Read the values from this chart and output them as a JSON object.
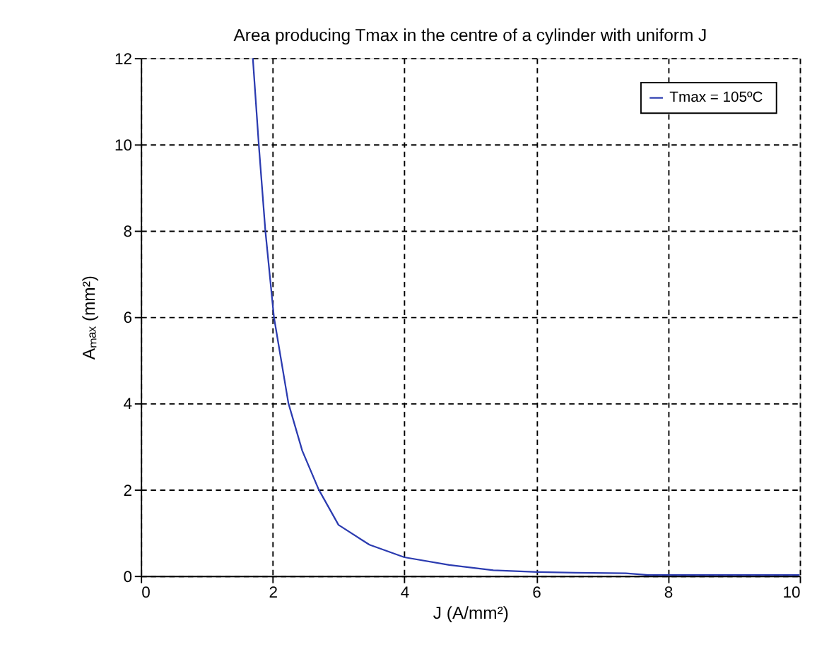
{
  "chart_data": {
    "type": "line",
    "title": "Area producing Tmax in the centre of a cylinder with uniform J",
    "xlabel": "J (A/mm²)",
    "ylabel": "Aₘₐₓ (mm²)",
    "series": [
      {
        "name": "Tmax =  105ºC",
        "color": "#2b3bb0",
        "x": [
          1.7,
          1.79,
          1.89,
          2.02,
          2.24,
          2.45,
          2.7,
          3.0,
          3.47,
          4.0,
          4.68,
          5.35,
          6.02,
          6.6,
          7.36,
          7.7,
          8.5,
          10
        ],
        "values": [
          12,
          10,
          8,
          6,
          4,
          2.9,
          2,
          1.18,
          0.72,
          0.43,
          0.25,
          0.13,
          0.09,
          0.07,
          0.06,
          0.02,
          0.02,
          0.02
        ]
      }
    ],
    "xlim": [
      0,
      10
    ],
    "ylim": [
      0,
      12
    ],
    "xticks": [
      0,
      2,
      4,
      6,
      8,
      10
    ],
    "yticks": [
      0,
      2,
      4,
      6,
      8,
      10,
      12
    ],
    "grid": true,
    "legend": "top right",
    "marker": "none",
    "line_style": "solid"
  }
}
